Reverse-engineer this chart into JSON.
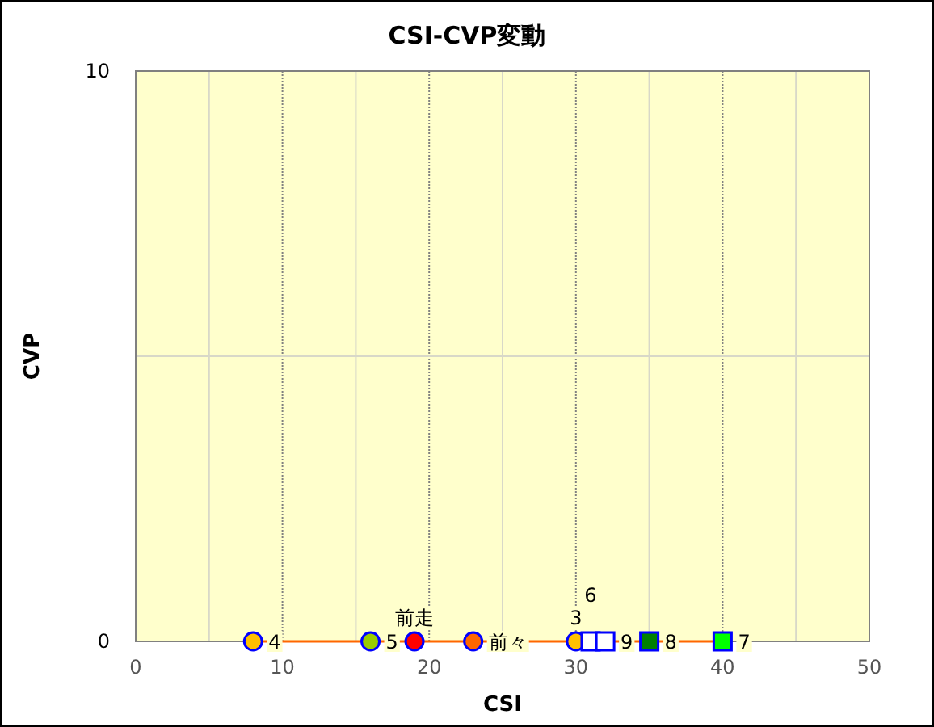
{
  "chart_data": {
    "type": "scatter",
    "title": "CSI-CVP変動",
    "xlabel": "CSI",
    "ylabel": "CVP",
    "xlim": [
      0,
      50
    ],
    "ylim": [
      0,
      10
    ],
    "xticks": [
      0,
      {
        "value": 5,
        "label": null
      },
      10,
      {
        "value": 15,
        "label": null
      },
      20,
      {
        "value": 25,
        "label": null
      },
      30,
      {
        "value": 35,
        "label": null
      },
      40,
      {
        "value": 45,
        "label": null
      },
      50
    ],
    "yticks": [
      0,
      {
        "value": 5,
        "label": null
      },
      10
    ],
    "grid": true,
    "series": [
      {
        "type": "line",
        "color": "#ff6600",
        "marker": "none",
        "x": [
          19,
          23,
          30,
          8,
          16,
          31,
          40,
          35,
          32
        ],
        "values": [
          0,
          0,
          0,
          0,
          0,
          0,
          0,
          0,
          0
        ]
      },
      {
        "marker": "circle",
        "x": [
          19,
          23,
          30,
          8,
          16
        ],
        "values": [
          0,
          0,
          0,
          0,
          0
        ],
        "colors": [
          "#ff0000",
          "#ff6600",
          "#ffc000",
          "#ffc000",
          "#99cc00"
        ]
      },
      {
        "marker": "square",
        "x": [
          31,
          40,
          35,
          32
        ],
        "values": [
          0,
          0,
          0,
          0
        ],
        "colors": [
          "#ffffff",
          "#00ff00",
          "#008000",
          "#ffffff"
        ]
      }
    ],
    "annotations": [
      {
        "text": "前走",
        "x": 19,
        "y": 0
      },
      {
        "text": "前々",
        "x": 23,
        "y": 0
      },
      {
        "text": "3",
        "x": 30,
        "y": 0
      },
      {
        "text": "4",
        "x": 8,
        "y": 0
      },
      {
        "text": "5",
        "x": 16,
        "y": 0
      },
      {
        "text": "6",
        "x": 31,
        "y": 0
      },
      {
        "text": "7",
        "x": 40,
        "y": 0
      },
      {
        "text": "8",
        "x": 35,
        "y": 0
      },
      {
        "text": "9",
        "x": 32,
        "y": 0
      }
    ]
  }
}
